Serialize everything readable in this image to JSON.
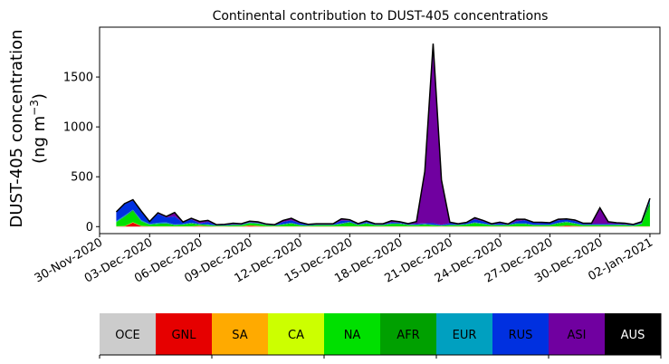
{
  "chart_data": {
    "type": "area",
    "title": "Continental contribution to DUST-405 concentrations",
    "ylabel_line1": "DUST-405 concentration",
    "ylabel_line2_prefix": "(ng m",
    "ylabel_line2_sup": "−3",
    "ylabel_line2_suffix": ")",
    "xlabel": "",
    "stacked": true,
    "x_start": "01-Dec-2020",
    "x_end": "02-Jan-2021",
    "x_step_days": 0.5,
    "x_note": "samples every 12 h",
    "xlim": [
      "30-Nov-2020",
      "02-Jan-2021"
    ],
    "ylim": [
      -70,
      2000
    ],
    "yticks": [
      0,
      500,
      1000,
      1500
    ],
    "xticks": [
      "30-Nov-2020",
      "03-Dec-2020",
      "06-Dec-2020",
      "09-Dec-2020",
      "12-Dec-2020",
      "15-Dec-2020",
      "18-Dec-2020",
      "21-Dec-2020",
      "24-Dec-2020",
      "27-Dec-2020",
      "30-Dec-2020",
      "02-Jan-2021"
    ],
    "series": [
      {
        "name": "OCE",
        "color": "#cccccc",
        "values": [
          0,
          0,
          0,
          0,
          0,
          0,
          0,
          0,
          0,
          0,
          0,
          0,
          0,
          0,
          0,
          0,
          0,
          0,
          0,
          0,
          0,
          0,
          0,
          0,
          0,
          0,
          0,
          0,
          0,
          0,
          0,
          0,
          0,
          0,
          0,
          0,
          0,
          0,
          0,
          0,
          0,
          0,
          0,
          0,
          0,
          0,
          0,
          0,
          0,
          0,
          0,
          0,
          0,
          0,
          0,
          0,
          0,
          0,
          0,
          0,
          0,
          0,
          0,
          0,
          0
        ]
      },
      {
        "name": "GNL",
        "color": "#e60000",
        "values": [
          2,
          3,
          40,
          5,
          2,
          2,
          2,
          2,
          2,
          2,
          5,
          3,
          2,
          2,
          2,
          2,
          8,
          5,
          2,
          2,
          2,
          2,
          2,
          2,
          2,
          2,
          2,
          2,
          2,
          2,
          2,
          2,
          2,
          2,
          2,
          2,
          2,
          2,
          2,
          2,
          2,
          2,
          2,
          2,
          2,
          2,
          2,
          2,
          2,
          2,
          2,
          2,
          2,
          2,
          8,
          5,
          2,
          2,
          2,
          2,
          2,
          2,
          2,
          2,
          2
        ]
      },
      {
        "name": "SA",
        "color": "#ffaa00",
        "values": [
          1,
          1,
          2,
          1,
          1,
          1,
          1,
          1,
          1,
          1,
          3,
          1,
          1,
          1,
          1,
          1,
          4,
          2,
          1,
          1,
          1,
          1,
          1,
          1,
          1,
          1,
          1,
          1,
          1,
          1,
          1,
          1,
          1,
          1,
          1,
          1,
          1,
          1,
          1,
          1,
          1,
          1,
          1,
          1,
          1,
          1,
          1,
          1,
          1,
          1,
          1,
          1,
          1,
          1,
          3,
          2,
          1,
          1,
          1,
          1,
          1,
          1,
          1,
          1,
          1
        ]
      },
      {
        "name": "CA",
        "color": "#ccff00",
        "values": [
          1,
          2,
          3,
          2,
          1,
          1,
          1,
          1,
          1,
          1,
          1,
          1,
          1,
          1,
          1,
          1,
          2,
          1,
          1,
          1,
          1,
          1,
          1,
          1,
          1,
          1,
          1,
          1,
          1,
          1,
          1,
          1,
          1,
          1,
          1,
          1,
          1,
          1,
          1,
          1,
          1,
          1,
          1,
          1,
          1,
          1,
          1,
          1,
          1,
          1,
          1,
          1,
          1,
          1,
          1,
          1,
          1,
          1,
          1,
          1,
          1,
          1,
          1,
          1,
          1
        ]
      },
      {
        "name": "NA",
        "color": "#00e000",
        "values": [
          40,
          90,
          110,
          45,
          15,
          20,
          20,
          10,
          15,
          25,
          10,
          10,
          5,
          5,
          10,
          10,
          20,
          20,
          10,
          5,
          15,
          25,
          10,
          5,
          10,
          10,
          10,
          20,
          30,
          10,
          25,
          10,
          10,
          20,
          20,
          10,
          10,
          15,
          10,
          5,
          10,
          10,
          15,
          30,
          20,
          10,
          10,
          10,
          20,
          20,
          10,
          10,
          10,
          25,
          30,
          20,
          10,
          10,
          10,
          10,
          10,
          10,
          5,
          20,
          200
        ]
      },
      {
        "name": "AFR",
        "color": "#00a000",
        "values": [
          2,
          5,
          10,
          3,
          2,
          5,
          8,
          3,
          2,
          5,
          3,
          3,
          2,
          2,
          2,
          2,
          3,
          3,
          2,
          2,
          3,
          5,
          2,
          2,
          2,
          2,
          2,
          5,
          10,
          3,
          3,
          3,
          2,
          5,
          5,
          3,
          3,
          4,
          3,
          2,
          3,
          2,
          3,
          5,
          3,
          2,
          2,
          2,
          5,
          5,
          3,
          2,
          2,
          5,
          5,
          3,
          2,
          2,
          2,
          2,
          2,
          2,
          1,
          5,
          40
        ]
      },
      {
        "name": "EUR",
        "color": "#00a0c0",
        "values": [
          10,
          10,
          5,
          10,
          5,
          10,
          10,
          5,
          5,
          5,
          5,
          5,
          2,
          2,
          3,
          3,
          5,
          5,
          3,
          2,
          5,
          5,
          3,
          2,
          3,
          3,
          3,
          5,
          5,
          3,
          5,
          3,
          3,
          5,
          5,
          3,
          3,
          5,
          3,
          2,
          3,
          3,
          5,
          5,
          5,
          3,
          3,
          3,
          5,
          5,
          3,
          3,
          3,
          5,
          5,
          5,
          3,
          3,
          3,
          3,
          3,
          3,
          2,
          5,
          10
        ]
      },
      {
        "name": "RUS",
        "color": "#0030e0",
        "values": [
          90,
          115,
          90,
          80,
          20,
          90,
          50,
          80,
          15,
          35,
          5,
          25,
          2,
          5,
          5,
          5,
          3,
          2,
          2,
          2,
          20,
          25,
          15,
          5,
          5,
          5,
          5,
          25,
          10,
          5,
          10,
          5,
          5,
          10,
          5,
          5,
          10,
          5,
          15,
          5,
          15,
          5,
          10,
          30,
          20,
          5,
          15,
          3,
          20,
          30,
          20,
          15,
          15,
          25,
          20,
          20,
          10,
          10,
          10,
          10,
          10,
          5,
          5,
          5,
          20
        ]
      },
      {
        "name": "ASI",
        "color": "#7000a0",
        "values": [
          2,
          5,
          10,
          10,
          5,
          10,
          10,
          40,
          5,
          10,
          20,
          15,
          5,
          5,
          10,
          5,
          10,
          10,
          5,
          5,
          15,
          20,
          10,
          5,
          5,
          5,
          5,
          20,
          10,
          5,
          10,
          5,
          5,
          15,
          10,
          5,
          20,
          520,
          1800,
          450,
          10,
          5,
          5,
          15,
          10,
          5,
          10,
          5,
          20,
          10,
          5,
          10,
          5,
          10,
          5,
          10,
          5,
          5,
          160,
          20,
          10,
          10,
          5,
          10,
          10
        ]
      },
      {
        "name": "AUS",
        "color": "#000000",
        "values": [
          0,
          0,
          0,
          0,
          0,
          0,
          0,
          0,
          0,
          0,
          0,
          0,
          0,
          0,
          0,
          0,
          0,
          0,
          0,
          0,
          0,
          0,
          0,
          0,
          0,
          0,
          0,
          0,
          0,
          0,
          0,
          0,
          0,
          0,
          0,
          0,
          0,
          0,
          0,
          0,
          0,
          0,
          0,
          0,
          0,
          0,
          0,
          0,
          0,
          0,
          0,
          0,
          0,
          0,
          0,
          0,
          0,
          0,
          0,
          0,
          0,
          0,
          0,
          0,
          0
        ]
      }
    ],
    "legend_placement": "bottom",
    "legend": [
      {
        "label": "OCE",
        "color": "#cccccc",
        "text_color": "#000000"
      },
      {
        "label": "GNL",
        "color": "#e60000",
        "text_color": "#000000"
      },
      {
        "label": "SA",
        "color": "#ffaa00",
        "text_color": "#000000"
      },
      {
        "label": "CA",
        "color": "#ccff00",
        "text_color": "#000000"
      },
      {
        "label": "NA",
        "color": "#00e000",
        "text_color": "#000000"
      },
      {
        "label": "AFR",
        "color": "#00a000",
        "text_color": "#000000"
      },
      {
        "label": "EUR",
        "color": "#00a0c0",
        "text_color": "#000000"
      },
      {
        "label": "RUS",
        "color": "#0030e0",
        "text_color": "#000000"
      },
      {
        "label": "ASI",
        "color": "#7000a0",
        "text_color": "#000000"
      },
      {
        "label": "AUS",
        "color": "#000000",
        "text_color": "#ffffff"
      }
    ],
    "grid": false
  }
}
